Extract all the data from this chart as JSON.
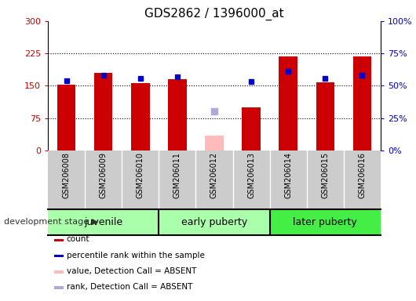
{
  "title": "GDS2862 / 1396000_at",
  "samples": [
    "GSM206008",
    "GSM206009",
    "GSM206010",
    "GSM206011",
    "GSM206012",
    "GSM206013",
    "GSM206014",
    "GSM206015",
    "GSM206016"
  ],
  "bar_values": [
    152,
    180,
    157,
    165,
    35,
    100,
    218,
    158,
    218
  ],
  "bar_absent_index": 4,
  "bar_color_present": "#cc0000",
  "bar_color_absent": "#ffbbbb",
  "percentile_values": [
    54,
    58,
    56,
    57,
    30,
    53,
    61,
    56,
    58
  ],
  "percentile_color_present": "#0000cc",
  "percentile_color_absent": "#aaaadd",
  "bar_width": 0.5,
  "marker_size": 5,
  "left_ylim": [
    0,
    300
  ],
  "left_yticks": [
    0,
    75,
    150,
    225,
    300
  ],
  "left_yticklabels": [
    "0",
    "75",
    "150",
    "225",
    "300"
  ],
  "right_ylim": [
    0,
    100
  ],
  "right_yticks": [
    0,
    25,
    50,
    75,
    100
  ],
  "right_yticklabels": [
    "0%",
    "25%",
    "50%",
    "75%",
    "100%"
  ],
  "grid_lines": [
    75,
    150,
    225
  ],
  "groups": [
    {
      "label": "juvenile",
      "start": 0,
      "end": 2,
      "color": "#aaffaa"
    },
    {
      "label": "early puberty",
      "start": 3,
      "end": 5,
      "color": "#aaffaa"
    },
    {
      "label": "later puberty",
      "start": 6,
      "end": 8,
      "color": "#44ee44"
    }
  ],
  "stage_label": "development stage",
  "legend_items": [
    {
      "color": "#cc0000",
      "label": "count"
    },
    {
      "color": "#0000cc",
      "label": "percentile rank within the sample"
    },
    {
      "color": "#ffbbbb",
      "label": "value, Detection Call = ABSENT"
    },
    {
      "color": "#aaaadd",
      "label": "rank, Detection Call = ABSENT"
    }
  ],
  "title_fontsize": 11,
  "tick_fontsize": 8,
  "sample_fontsize": 7,
  "group_fontsize": 9,
  "legend_fontsize": 7.5,
  "stage_fontsize": 8
}
